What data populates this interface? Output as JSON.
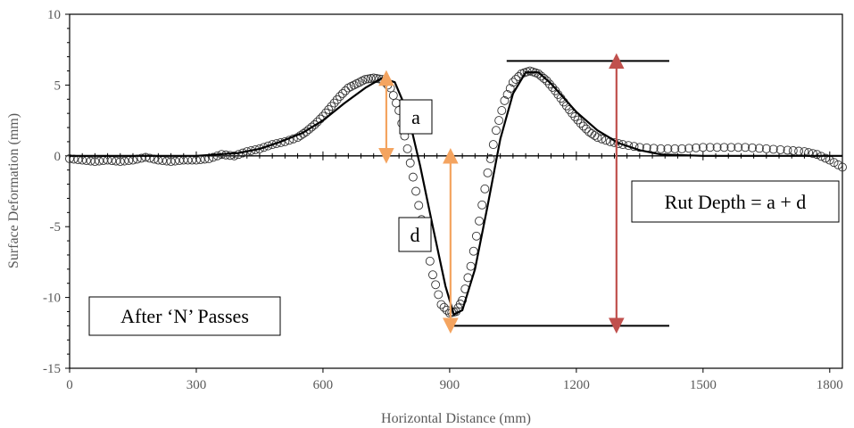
{
  "chart_data": {
    "type": "scatter",
    "title": "",
    "xlabel": "Horizontal Distance (mm)",
    "ylabel": "Surface Deformation (mm)",
    "xlim": [
      0,
      1830
    ],
    "ylim": [
      -15,
      10
    ],
    "xticks": [
      0,
      300,
      600,
      900,
      1200,
      1500,
      1800
    ],
    "yticks": [
      10,
      5,
      0,
      -5,
      -10,
      -15
    ],
    "xtick_labels": [
      "0",
      "300",
      "600",
      "900",
      "1200",
      "1500",
      "1800"
    ],
    "ytick_labels": [
      "10",
      "5",
      "0",
      "-5",
      "-10",
      "-15"
    ],
    "grid": false,
    "series": [
      {
        "kind": "markers",
        "marker": "open-circle",
        "x": [
          0,
          30,
          60,
          90,
          120,
          150,
          180,
          210,
          240,
          270,
          300,
          330,
          360,
          390,
          420,
          450,
          480,
          510,
          540,
          560,
          580,
          600,
          620,
          640,
          660,
          680,
          700,
          720,
          740,
          760,
          780,
          800,
          820,
          840,
          860,
          880,
          900,
          915,
          930,
          950,
          970,
          990,
          1010,
          1030,
          1050,
          1070,
          1090,
          1110,
          1130,
          1150,
          1170,
          1190,
          1210,
          1230,
          1250,
          1280,
          1310,
          1350,
          1400,
          1450,
          1500,
          1550,
          1600,
          1650,
          1700,
          1740,
          1770,
          1800,
          1830
        ],
        "y": [
          -0.2,
          -0.3,
          -0.4,
          -0.3,
          -0.4,
          -0.3,
          -0.1,
          -0.3,
          -0.4,
          -0.3,
          -0.3,
          -0.2,
          0.1,
          0.0,
          0.3,
          0.5,
          0.8,
          1.0,
          1.3,
          1.7,
          2.2,
          2.8,
          3.5,
          4.2,
          4.8,
          5.1,
          5.4,
          5.5,
          5.4,
          4.8,
          3.2,
          0.5,
          -2.5,
          -5.5,
          -8.4,
          -10.5,
          -11.1,
          -11.0,
          -10.2,
          -7.8,
          -4.6,
          -1.2,
          1.8,
          3.9,
          5.2,
          5.8,
          6.0,
          5.8,
          5.3,
          4.6,
          3.8,
          3.0,
          2.3,
          1.7,
          1.3,
          1.0,
          0.8,
          0.6,
          0.5,
          0.5,
          0.6,
          0.6,
          0.6,
          0.5,
          0.4,
          0.3,
          0.1,
          -0.3,
          -0.8
        ]
      },
      {
        "kind": "fit-line",
        "x": [
          0,
          100,
          200,
          300,
          400,
          450,
          500,
          550,
          600,
          650,
          700,
          740,
          770,
          800,
          830,
          860,
          890,
          910,
          930,
          960,
          990,
          1020,
          1050,
          1080,
          1110,
          1140,
          1170,
          1200,
          1250,
          1300,
          1350,
          1400,
          1500,
          1600,
          1700,
          1800,
          1830
        ],
        "y": [
          0.0,
          0.0,
          0.0,
          0.0,
          0.2,
          0.5,
          1.0,
          1.6,
          2.5,
          3.7,
          4.8,
          5.5,
          5.2,
          3.1,
          -0.7,
          -5.0,
          -9.2,
          -11.2,
          -10.9,
          -8.0,
          -3.5,
          1.2,
          4.4,
          5.9,
          5.9,
          5.1,
          4.1,
          3.1,
          1.8,
          0.9,
          0.4,
          0.1,
          0.0,
          0.0,
          0.0,
          0.0,
          0.0
        ]
      }
    ],
    "annotations": {
      "a_label": "a",
      "d_label": "d",
      "rut_label": "Rut Depth = a + d",
      "passes_label": "After ‘N’ Passes",
      "a_arrow": {
        "x": 750,
        "y_from": 0,
        "y_to": 5.5
      },
      "d_arrow": {
        "x": 902,
        "y_from": 0,
        "y_to": -12
      },
      "rut_arrow": {
        "x": 1295,
        "y_from": 6.7,
        "y_to": -12
      },
      "top_ref_line": {
        "x_from": 1035,
        "x_to": 1420,
        "y": 6.7
      },
      "bottom_ref_line": {
        "x_from": 900,
        "x_to": 1420,
        "y": -12
      }
    },
    "colors": {
      "amber_arrow": "#F4A460",
      "red_arrow": "#C0504D",
      "line": "#000000",
      "axis_text": "#595959"
    }
  }
}
